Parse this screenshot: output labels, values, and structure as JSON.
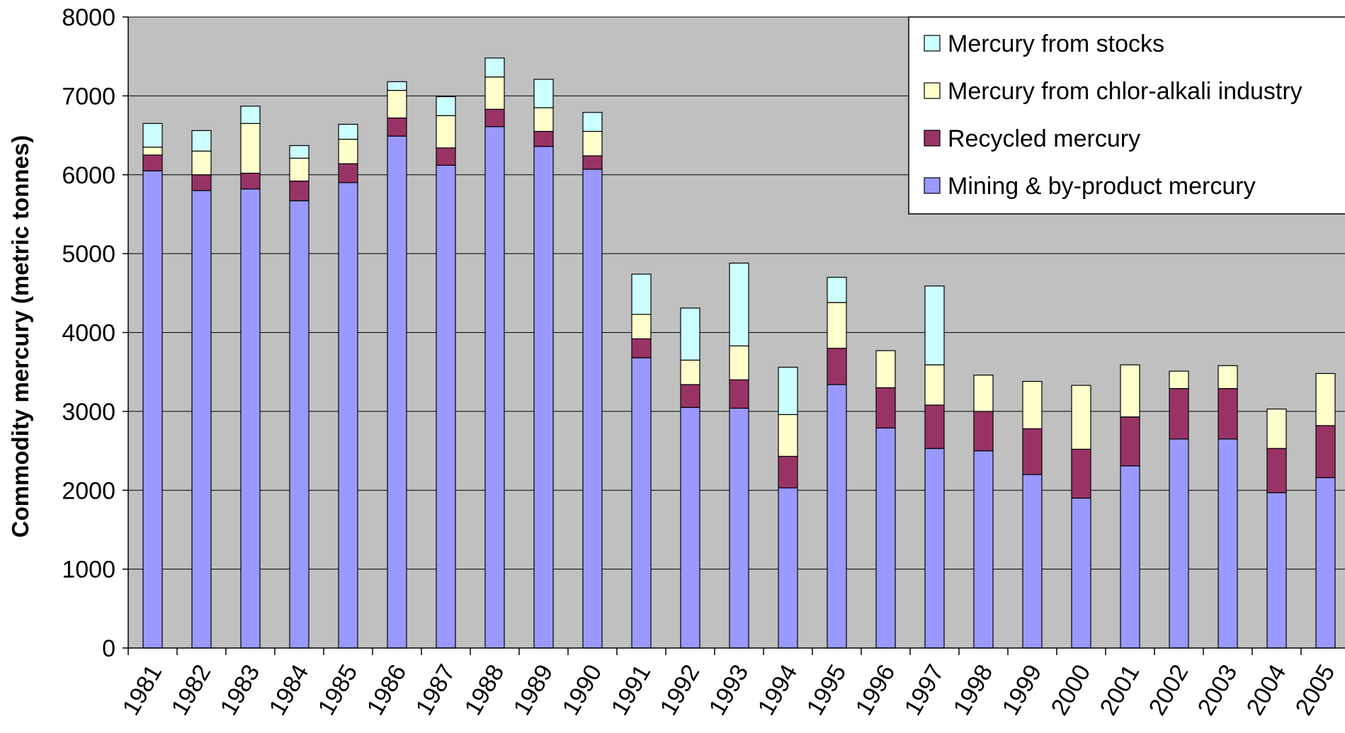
{
  "chart_data": {
    "type": "bar",
    "stacked": true,
    "title": "",
    "xlabel": "",
    "ylabel": "Commodity mercury (metric tonnes)",
    "ylim": [
      0,
      8000
    ],
    "yticks": [
      "0",
      "1000",
      "2000",
      "3000",
      "4000",
      "5000",
      "6000",
      "7000",
      "8000"
    ],
    "grid": true,
    "legend_position": "top-right",
    "categories": [
      "1981",
      "1982",
      "1983",
      "1984",
      "1985",
      "1986",
      "1987",
      "1988",
      "1989",
      "1990",
      "1991",
      "1992",
      "1993",
      "1994",
      "1995",
      "1996",
      "1997",
      "1998",
      "1999",
      "2000",
      "2001",
      "2002",
      "2003",
      "2004",
      "2005"
    ],
    "series": [
      {
        "name": "Mining & by-product mercury",
        "color": "#9999ff",
        "values": [
          6050,
          5800,
          5820,
          5670,
          5900,
          6490,
          6120,
          6610,
          6360,
          6070,
          3680,
          3050,
          3040,
          2030,
          3340,
          2790,
          2530,
          2500,
          2200,
          1900,
          2310,
          2650,
          2650,
          1970,
          2160
        ]
      },
      {
        "name": "Recycled mercury",
        "color": "#993366",
        "values": [
          200,
          200,
          200,
          250,
          240,
          230,
          220,
          220,
          190,
          170,
          240,
          290,
          360,
          400,
          460,
          510,
          550,
          500,
          580,
          620,
          620,
          640,
          640,
          560,
          660
        ]
      },
      {
        "name": "Mercury from chlor-alkali industry",
        "color": "#ffffcc",
        "values": [
          100,
          300,
          630,
          290,
          310,
          350,
          410,
          410,
          300,
          310,
          310,
          310,
          430,
          530,
          580,
          470,
          510,
          460,
          600,
          810,
          660,
          220,
          290,
          500,
          660
        ]
      },
      {
        "name": "Mercury from stocks",
        "color": "#ccffff",
        "values": [
          300,
          260,
          220,
          160,
          190,
          110,
          240,
          240,
          360,
          240,
          510,
          660,
          1050,
          600,
          320,
          0,
          1000,
          0,
          0,
          0,
          0,
          0,
          0,
          0,
          0
        ]
      }
    ]
  }
}
